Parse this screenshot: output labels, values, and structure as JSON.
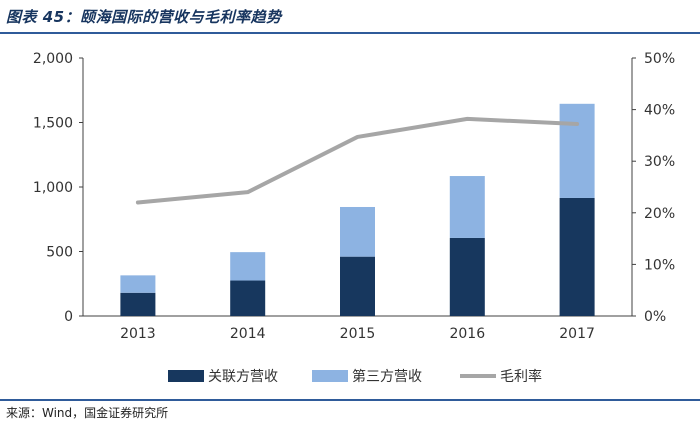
{
  "title": "图表 45：颐海国际的营收与毛利率趋势",
  "source": "来源：Wind，国金证券研究所",
  "chart_data": {
    "type": "bar",
    "stacked": true,
    "categories": [
      "2013",
      "2014",
      "2015",
      "2016",
      "2017"
    ],
    "series": [
      {
        "name": "关联方营收",
        "kind": "bar",
        "axis": "left",
        "color": "#17375e",
        "values": [
          180,
          275,
          460,
          605,
          915
        ]
      },
      {
        "name": "第三方营收",
        "kind": "bar",
        "axis": "left",
        "color": "#8db3e2",
        "values": [
          135,
          220,
          385,
          480,
          730
        ]
      },
      {
        "name": "毛利率",
        "kind": "line",
        "axis": "right",
        "color": "#a6a6a6",
        "values": [
          0.22,
          0.24,
          0.347,
          0.382,
          0.372
        ]
      }
    ],
    "ylim_left": [
      0,
      2000
    ],
    "yticks_left": [
      "0",
      "500",
      "1,000",
      "1,500",
      "2,000"
    ],
    "ylim_right": [
      0,
      0.5
    ],
    "yticks_right": [
      "0%",
      "10%",
      "20%",
      "30%",
      "40%",
      "50%"
    ],
    "grid": false,
    "legend_position": "bottom"
  }
}
